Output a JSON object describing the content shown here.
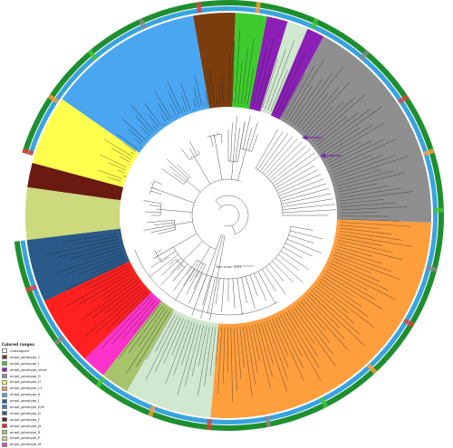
{
  "legend": {
    "title": "Colored ranges",
    "items": [
      {
        "label": "Unassigned",
        "color": "#ffffff"
      },
      {
        "label": "ompA_genotype_C",
        "color": "#7a3e0e"
      },
      {
        "label": "ompA_genotype_I",
        "color": "#3ecb2e"
      },
      {
        "label": "ompA_genotype_novel",
        "color": "#8b1fb6"
      },
      {
        "label": "ompA_genotype_G",
        "color": "#8f8f8f"
      },
      {
        "label": "ompA_genotype_H",
        "color": "#ffff4d"
      },
      {
        "label": "ompA_genotype_L1",
        "color": "#ff9e3d"
      },
      {
        "label": "ompA_genotype_K",
        "color": "#4aa6f0"
      },
      {
        "label": "ompA_genotype_J",
        "color": "#1f5fa3"
      },
      {
        "label": "ompA_genotype_E/M",
        "color": "#2e7fb8"
      },
      {
        "label": "ompA_genotype_D",
        "color": "#2a5a8a"
      },
      {
        "label": "ompA_genotype_F",
        "color": "#6b1a12"
      },
      {
        "label": "ompA_genotype_Ja",
        "color": "#ff2020"
      },
      {
        "label": "ompA_genotype_B",
        "color": "#a5c46b"
      },
      {
        "label": "ompA_genotype_E",
        "color": "#ccd97c"
      },
      {
        "label": "ompA_genotype_M",
        "color": "#ff33cc"
      }
    ]
  },
  "scale_bar": {
    "label": "Tree scale: 0.01"
  },
  "rings": {
    "outer": "#1e8f2e",
    "inner": "#39a3e0"
  },
  "clades": [
    {
      "genotype": "ompA_genotype_L1",
      "color": "#ff9e3d",
      "start": 92,
      "end": 263
    },
    {
      "genotype": "ompA_genotype_G",
      "color": "#8f8f8f",
      "start": 28,
      "end": 92
    },
    {
      "genotype": "ompA_genotype_novel",
      "color": "#8b1fb6",
      "start": 23,
      "end": 28
    },
    {
      "genotype": "Unassigned",
      "color": "#cfe8cf",
      "start": 17,
      "end": 23
    },
    {
      "genotype": "ompA_genotype_novel",
      "color": "#8b1fb6",
      "start": 11,
      "end": 17
    },
    {
      "genotype": "ompA_genotype_I",
      "color": "#3ecb2e",
      "start": 2,
      "end": 11
    },
    {
      "genotype": "ompA_genotype_C",
      "color": "#7a3e0e",
      "start": -10,
      "end": 2
    },
    {
      "genotype": "ompA_genotype_K",
      "color": "#4aa6f0",
      "start": -55,
      "end": -10
    },
    {
      "genotype": "ompA_genotype_H",
      "color": "#ffff4d",
      "start": -75,
      "end": -55
    },
    {
      "genotype": "ompA_genotype_F",
      "color": "#6b1a12",
      "start": -82,
      "end": -75
    },
    {
      "genotype": "ompA_genotype_E",
      "color": "#ccd97c",
      "start": -97,
      "end": -82
    },
    {
      "genotype": "ompA_genotype_D",
      "color": "#2a5a8a",
      "start": -115,
      "end": -97
    },
    {
      "genotype": "ompA_genotype_Ja",
      "color": "#ff2020",
      "start": -135,
      "end": -115
    },
    {
      "genotype": "ompA_genotype_M",
      "color": "#ff33cc",
      "start": -142,
      "end": -135
    },
    {
      "genotype": "ompA_genotype_B",
      "color": "#a5c46b",
      "start": -150,
      "end": -142
    },
    {
      "genotype": "Unassigned",
      "color": "#cfe8cf",
      "start": -175,
      "end": -150
    }
  ]
}
